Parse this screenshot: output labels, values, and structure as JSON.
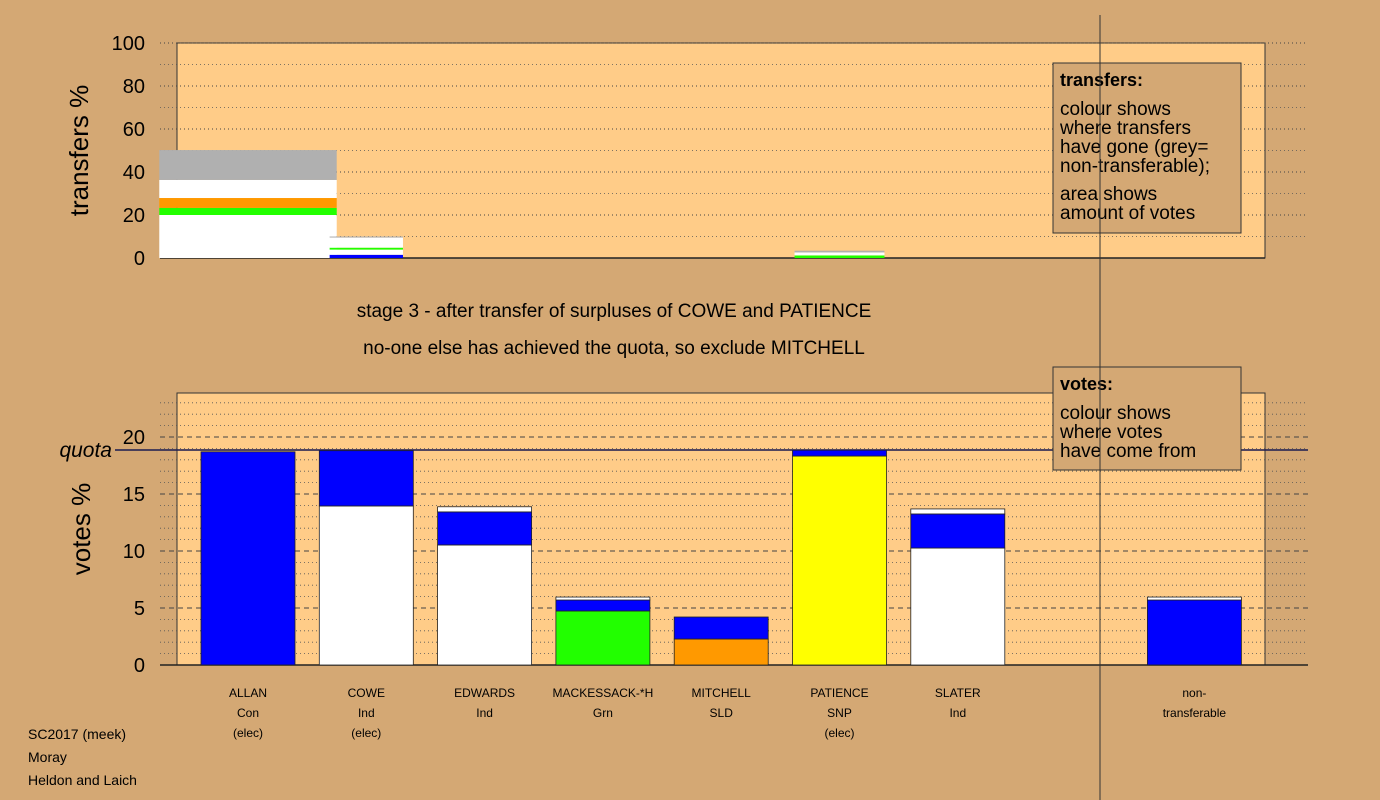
{
  "stage": [
    "stage 3 - after transfer of surpluses of COWE and PATIENCE",
    "no-one else has achieved the quota, so exclude MITCHELL"
  ],
  "footer": [
    "SC2017 (meek)",
    "Moray",
    "Heldon and Laich"
  ],
  "chart_data": [
    {
      "type": "bar",
      "ylabel": "transfers %",
      "ylim": [
        0,
        100
      ],
      "yticks": [
        0,
        20,
        40,
        60,
        80,
        100
      ],
      "minor_yticks": [
        10,
        30,
        50,
        70,
        90
      ],
      "widths": [
        1.5,
        0.62,
        null,
        null,
        null,
        0.76,
        null,
        null,
        null
      ],
      "stacks": [
        [
          {
            "color": "#ffffff",
            "value": 20
          },
          {
            "color": "#22ff00",
            "value": 3.3
          },
          {
            "color": "#ff9900",
            "value": 4.6
          },
          {
            "color": "#ffffff",
            "value": 8.4
          },
          {
            "color": "#b0b0b0",
            "value": 13.9
          }
        ],
        [
          {
            "color": "#0000ff",
            "value": 1.5
          },
          {
            "color": "#ffffff",
            "value": 2.4
          },
          {
            "color": "#22ff00",
            "value": 0.9
          },
          {
            "color": "#ffffff",
            "value": 4.7
          },
          {
            "color": "#b0b0b0",
            "value": 0.5
          }
        ],
        null,
        null,
        null,
        [
          {
            "color": "#22ff00",
            "value": 1.2
          },
          {
            "color": "#ffffff",
            "value": 1.4
          },
          {
            "color": "#b0b0b0",
            "value": 0.8
          }
        ],
        null,
        null,
        null
      ],
      "note": {
        "title": "transfers:",
        "paragraphs": [
          [
            "colour shows",
            "where transfers",
            "have gone (grey=",
            "non-transferable);"
          ],
          [
            "area shows",
            "amount of votes"
          ]
        ]
      }
    },
    {
      "type": "bar",
      "ylabel": "votes %",
      "ylim": [
        0,
        23.86
      ],
      "yticks": [
        0,
        5,
        10,
        15,
        20
      ],
      "minor_yticks": [
        1,
        2,
        3,
        4,
        6,
        7,
        8,
        9,
        11,
        12,
        13,
        14,
        16,
        17,
        18,
        19,
        21,
        22,
        23
      ],
      "quota": 18.86,
      "quota_label": "quota",
      "categories": [
        [
          "ALLAN",
          "Con",
          "(elec)"
        ],
        [
          "COWE",
          "Ind",
          "(elec)"
        ],
        [
          "EDWARDS",
          "Ind"
        ],
        [
          "MACKESSACK-*H",
          "Grn"
        ],
        [
          "MITCHELL",
          "SLD"
        ],
        [
          "PATIENCE",
          "SNP",
          "(elec)"
        ],
        [
          "SLATER",
          "Ind"
        ],
        null,
        [
          "non-",
          "transferable"
        ]
      ],
      "stacks": [
        [
          {
            "color": "#0000ff",
            "value": 18.7
          }
        ],
        [
          {
            "color": "#ffffff",
            "value": 13.95
          },
          {
            "color": "#0000ff",
            "value": 4.85
          }
        ],
        [
          {
            "color": "#ffffff",
            "value": 10.53
          },
          {
            "color": "#0000ff",
            "value": 2.9
          },
          {
            "color": "#ffffff",
            "value": 0.45
          }
        ],
        [
          {
            "color": "#22ff00",
            "value": 4.74
          },
          {
            "color": "#0000ff",
            "value": 0.96
          },
          {
            "color": "#ffffff",
            "value": 0.26
          }
        ],
        [
          {
            "color": "#ff9900",
            "value": 2.28
          },
          {
            "color": "#0000ff",
            "value": 1.93
          }
        ],
        [
          {
            "color": "#ffff00",
            "value": 18.33
          },
          {
            "color": "#0000ff",
            "value": 0.53
          }
        ],
        [
          {
            "color": "#ffffff",
            "value": 10.26
          },
          {
            "color": "#0000ff",
            "value": 2.99
          },
          {
            "color": "#ffffff",
            "value": 0.44
          }
        ],
        null,
        [
          {
            "color": "#0000ff",
            "value": 5.7
          },
          {
            "color": "#ffffff",
            "value": 0.26
          }
        ]
      ],
      "note": {
        "title": "votes:",
        "paragraphs": [
          [
            "colour shows",
            "where votes",
            "have come from"
          ]
        ]
      }
    }
  ]
}
